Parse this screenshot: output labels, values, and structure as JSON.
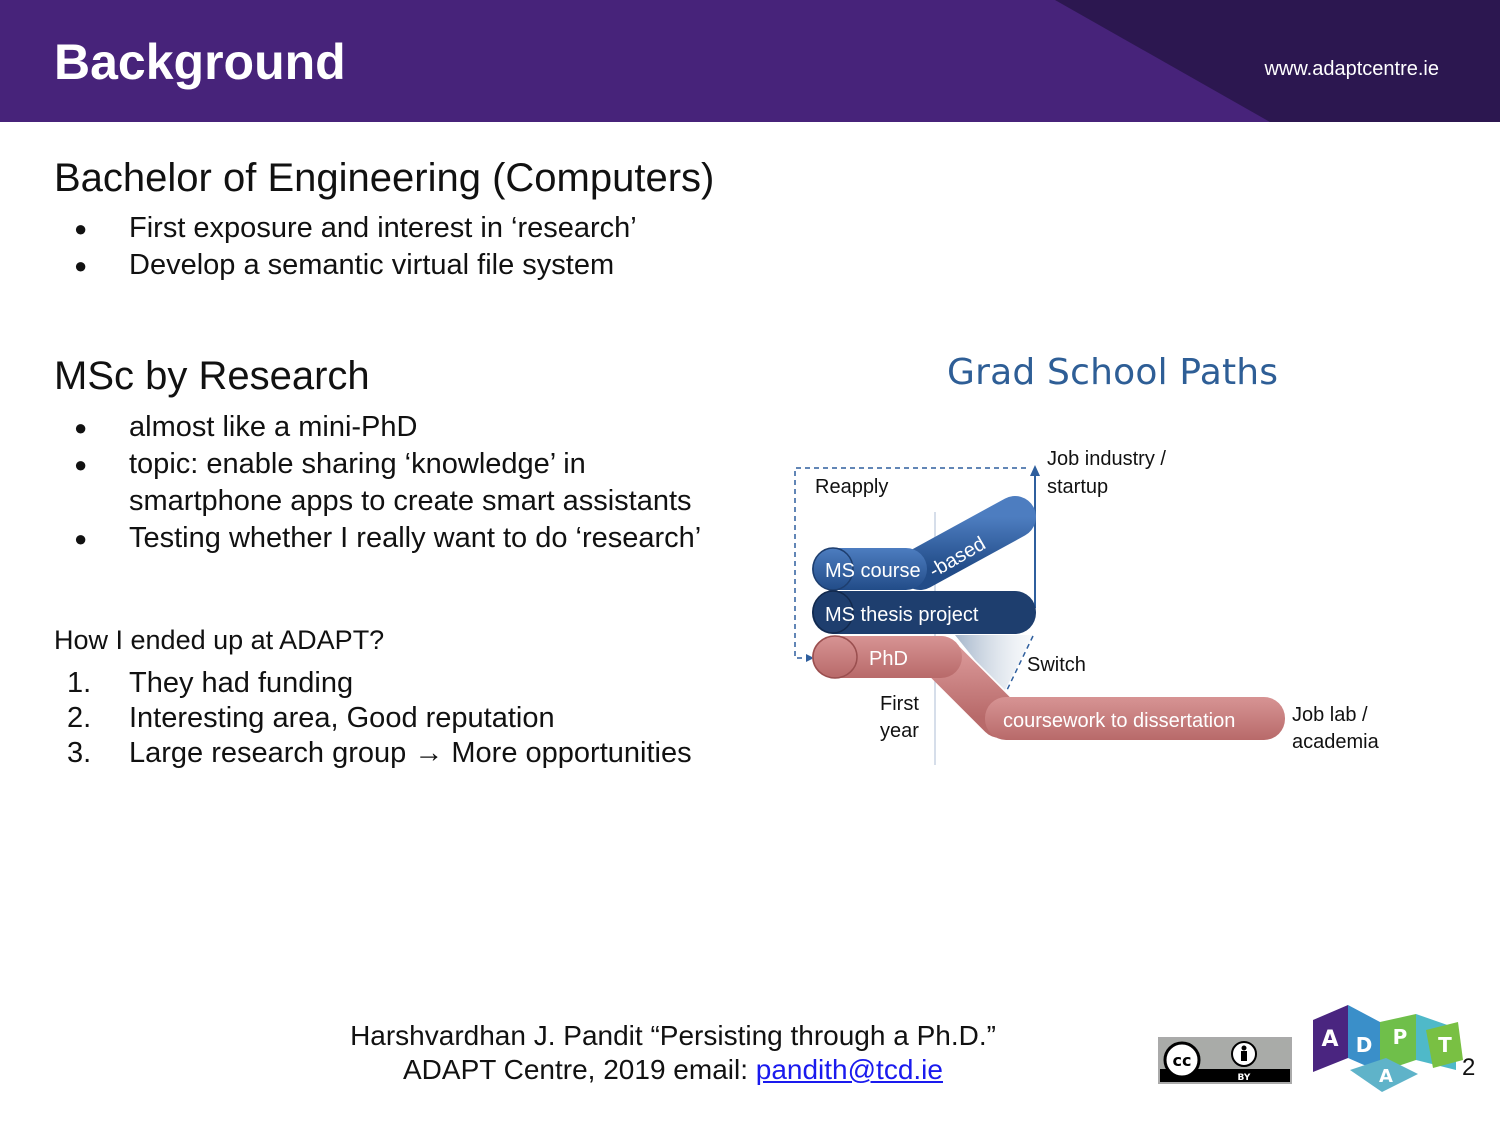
{
  "header": {
    "title": "Background",
    "site": "www.adaptcentre.ie"
  },
  "sections": {
    "bachelor": {
      "heading": "Bachelor of Engineering (Computers)",
      "items": [
        "First exposure and interest in ‘research’",
        "Develop a semantic virtual file system"
      ]
    },
    "msc": {
      "heading": "MSc by Research",
      "items": [
        "almost like a mini-PhD",
        "topic: enable sharing ‘knowledge’ in",
        "smartphone apps to create smart assistants",
        "Testing whether I really want to do ‘research’"
      ]
    },
    "adapt": {
      "question": "How I ended up at ADAPT?",
      "numbers": [
        "1.",
        "2.",
        "3."
      ],
      "items": [
        "They had funding",
        "Interesting area, Good reputation",
        "Large research group → More opportunities"
      ]
    }
  },
  "diagram": {
    "title": "Grad School Paths",
    "labels": {
      "reapply": "Reapply",
      "job_industry_1": "Job industry /",
      "job_industry_2": "startup",
      "ms_course": "MS course",
      "based": "-based",
      "ms_thesis": "MS thesis project",
      "phd": "PhD",
      "switch": "Switch",
      "first_1": "First",
      "first_2": "year",
      "coursework": "coursework to dissertation",
      "job_lab_1": "Job lab /",
      "job_lab_2": "academia"
    },
    "colors": {
      "blue": "#2f5f9e",
      "dark_blue": "#1e3e6e",
      "rose": "#c87878"
    }
  },
  "footer": {
    "line1": "Harshvardhan J. Pandit “Persisting through a Ph.D.”",
    "line2": "ADAPT Centre, 2019  email: ",
    "email": "pandith@tcd.ie",
    "page": "2"
  },
  "license": {
    "cc": "cc",
    "by": "BY"
  },
  "logo": {
    "letters": [
      "A",
      "D",
      "P",
      "T",
      "A"
    ]
  }
}
